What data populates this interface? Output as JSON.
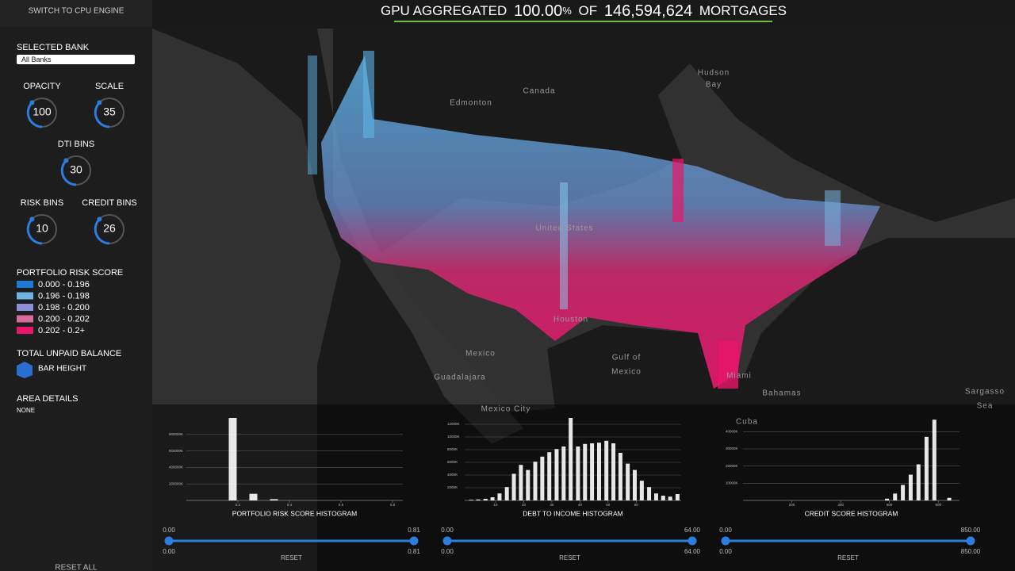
{
  "sidebar": {
    "engine_toggle": "SWITCH TO CPU ENGINE",
    "bank_label": "SELECTED BANK",
    "bank_value": "All Banks",
    "knobs": [
      {
        "label": "OPACITY",
        "value": "100"
      },
      {
        "label": "SCALE",
        "value": "35"
      },
      {
        "label": "DTI BINS",
        "value": "30"
      },
      {
        "label": "RISK BINS",
        "value": "10"
      },
      {
        "label": "CREDIT BINS",
        "value": "26"
      }
    ],
    "legend": {
      "title": "PORTFOLIO RISK SCORE",
      "items": [
        {
          "label": "0.000 - 0.196",
          "color": "#1e78d6"
        },
        {
          "label": "0.196 - 0.198",
          "color": "#6fb3e0"
        },
        {
          "label": "0.198 - 0.200",
          "color": "#8d8fd8"
        },
        {
          "label": "0.200 - 0.202",
          "color": "#d66b9c"
        },
        {
          "label": "0.202 - 0.2+",
          "color": "#e8156a"
        }
      ]
    },
    "balance": {
      "title": "TOTAL UNPAID BALANCE",
      "item": "BAR HEIGHT"
    },
    "area": {
      "title": "AREA DETAILS",
      "value": "NONE"
    },
    "reset_all": "RESET ALL"
  },
  "header": {
    "prefix": "GPU AGGREGATED",
    "percent": "100.00",
    "percent_sign": "%",
    "middle": "OF",
    "count": "146,594,624",
    "suffix": "MORTGAGES"
  },
  "map_labels": [
    "Hudson",
    "Bay",
    "Canada",
    "Edmonton",
    "United States",
    "Mexico",
    "Gulf of",
    "Mexico",
    "Guadalajara",
    "Houston",
    "Miami",
    "Bahamas",
    "Sargasso",
    "Sea",
    "Cuba",
    "Mexico City"
  ],
  "histograms": [
    {
      "type": "bar",
      "title": "PORTFOLIO RISK SCORE HISTOGRAM",
      "color": "#ffffff",
      "x": [
        0.18,
        0.26,
        0.34
      ],
      "values": [
        1000000,
        80000,
        15000
      ],
      "xlim": [
        0,
        0.84
      ],
      "xticks": [
        0.2,
        0.4,
        0.6,
        0.8
      ],
      "ylim": [
        0,
        1000000
      ],
      "yticks": [
        {
          "value": 200000,
          "label": "200000K"
        },
        {
          "value": 400000,
          "label": "400000K"
        },
        {
          "value": 600000,
          "label": "600000K"
        },
        {
          "value": 800000,
          "label": "800000K"
        }
      ],
      "slider": {
        "min_label": "0.00",
        "max_label": "0.81",
        "from_label": "0.00",
        "to_label": "0.81",
        "reset": "RESET"
      }
    },
    {
      "type": "bar",
      "title": "DEBT TO INCOME HISTOGRAM",
      "color": "#ffffff",
      "x": [
        1.3,
        3.8,
        6.4,
        8.9,
        11.4,
        14.0,
        16.5,
        19.0,
        21.5,
        24.1,
        26.6,
        29.1,
        31.7,
        34.2,
        36.7,
        39.3,
        41.8,
        44.3,
        46.8,
        49.4,
        51.9,
        54.4,
        57.0,
        59.5,
        62.0,
        64.6,
        67.1,
        69.6,
        72.1,
        74.7
      ],
      "values": [
        100,
        150,
        250,
        500,
        1100,
        2100,
        4200,
        5600,
        4800,
        6100,
        6900,
        7600,
        8100,
        8500,
        13000,
        8500,
        8900,
        9000,
        9100,
        9400,
        9000,
        7500,
        5800,
        4800,
        3100,
        2100,
        1100,
        750,
        600,
        1000
      ],
      "xlim": [
        -1,
        76
      ],
      "xticks": [
        10,
        20,
        30,
        40,
        50,
        60
      ],
      "ylim": [
        0,
        13000
      ],
      "yticks": [
        {
          "value": 2000,
          "label": "2000K"
        },
        {
          "value": 4000,
          "label": "4000K"
        },
        {
          "value": 6000,
          "label": "6000K"
        },
        {
          "value": 8000,
          "label": "8000K"
        },
        {
          "value": 10000,
          "label": "10000K"
        },
        {
          "value": 12000,
          "label": "12000K"
        }
      ],
      "slider": {
        "min_label": "0.00",
        "max_label": "64.00",
        "from_label": "0.00",
        "to_label": "64.00",
        "reset": "RESET"
      }
    },
    {
      "type": "bar",
      "title": "CREDIT SCORE HISTOGRAM",
      "color": "#ffffff",
      "x": [
        590,
        623,
        655,
        687,
        719,
        752,
        784,
        845
      ],
      "values": [
        1000,
        4000,
        9000,
        15000,
        21000,
        37000,
        47000,
        1500
      ],
      "xlim": [
        0,
        887
      ],
      "xticks": [
        200,
        400,
        600,
        800
      ],
      "ylim": [
        0,
        48000
      ],
      "yticks": [
        {
          "value": 10000,
          "label": "10000K"
        },
        {
          "value": 20000,
          "label": "20000K"
        },
        {
          "value": 30000,
          "label": "30000K"
        },
        {
          "value": 40000,
          "label": "40000K"
        }
      ],
      "slider": {
        "min_label": "0.00",
        "max_label": "850.00",
        "from_label": "0.00",
        "to_label": "850.00",
        "reset": "RESET"
      }
    }
  ]
}
